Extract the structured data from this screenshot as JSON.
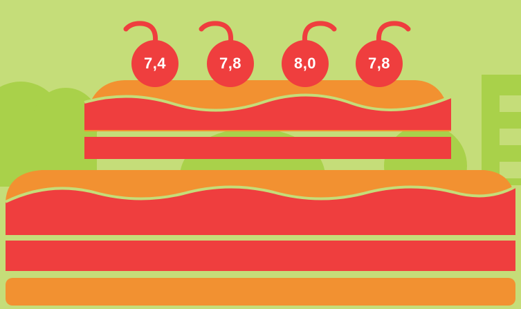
{
  "colors": {
    "background": "#c5dd79",
    "trees": "#a9d14a",
    "frosting": "#f29131",
    "cake_layer": "#ef3e3e",
    "cherry": "#ef3e3e",
    "building": "#a9d14a",
    "building_window": "#c5dd79"
  },
  "cherries": [
    {
      "label": "7,4"
    },
    {
      "label": "7,8"
    },
    {
      "label": "8,0"
    },
    {
      "label": "7,8"
    }
  ],
  "icons": {
    "cake": "two-tier-cake-illustration",
    "cherry": "cherry-icon",
    "building": "building-icon",
    "tree": "tree-icon"
  }
}
